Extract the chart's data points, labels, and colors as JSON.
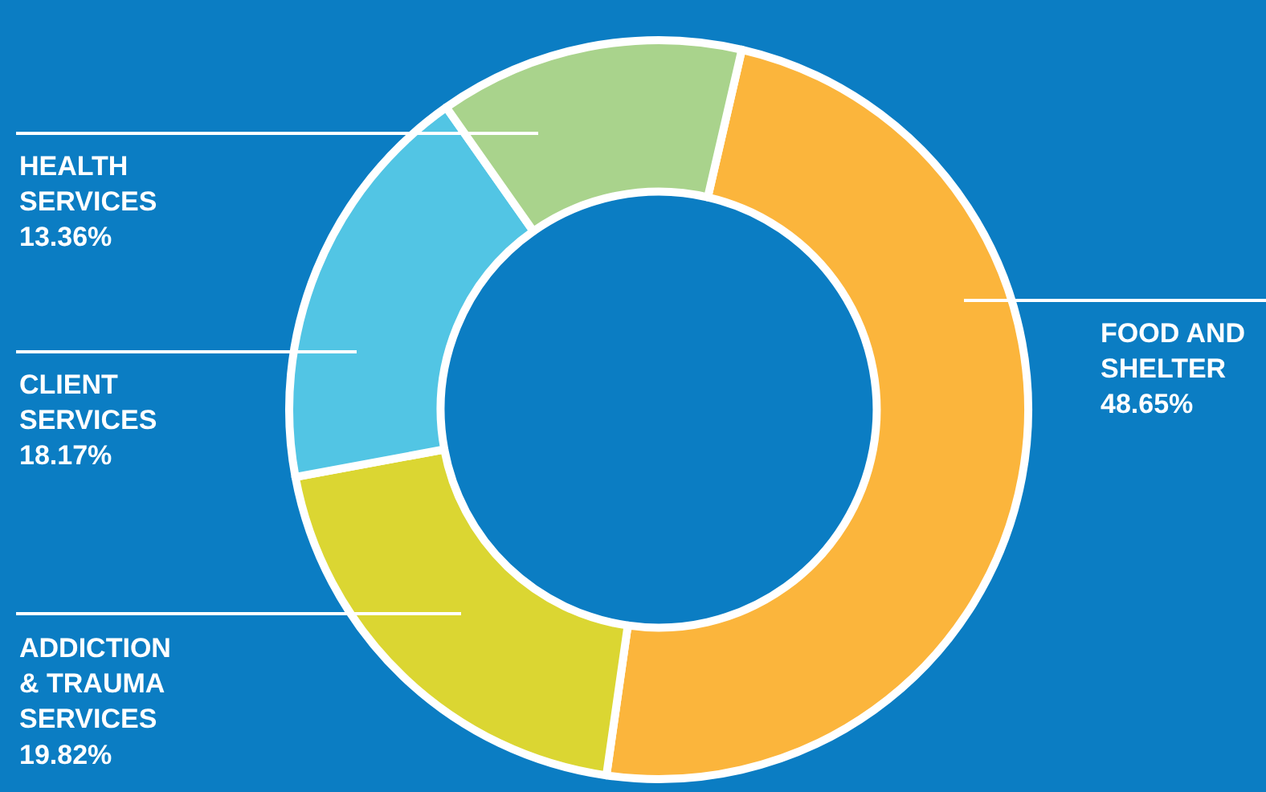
{
  "chart_data": {
    "type": "donut",
    "categories": [
      "FOOD AND SHELTER",
      "ADDICTION & TRAUMA SERVICES",
      "CLIENT SERVICES",
      "HEALTH SERVICES"
    ],
    "values": [
      48.65,
      19.82,
      18.17,
      13.36
    ],
    "value_labels": [
      "48.65%",
      "19.82%",
      "18.17%",
      "13.36%"
    ],
    "colors": [
      "#fbb53c",
      "#dbd632",
      "#52c5e4",
      "#a9d38c"
    ],
    "legend": false
  }
}
